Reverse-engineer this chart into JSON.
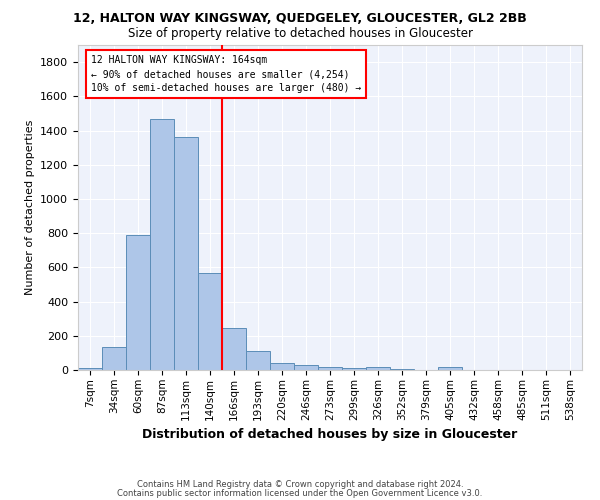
{
  "title_main": "12, HALTON WAY KINGSWAY, QUEDGELEY, GLOUCESTER, GL2 2BB",
  "title_sub": "Size of property relative to detached houses in Gloucester",
  "xlabel": "Distribution of detached houses by size in Gloucester",
  "ylabel": "Number of detached properties",
  "bar_labels": [
    "7sqm",
    "34sqm",
    "60sqm",
    "87sqm",
    "113sqm",
    "140sqm",
    "166sqm",
    "193sqm",
    "220sqm",
    "246sqm",
    "273sqm",
    "299sqm",
    "326sqm",
    "352sqm",
    "379sqm",
    "405sqm",
    "432sqm",
    "458sqm",
    "485sqm",
    "511sqm",
    "538sqm"
  ],
  "bar_heights": [
    10,
    135,
    790,
    1470,
    1360,
    570,
    245,
    110,
    40,
    27,
    18,
    14,
    16,
    8,
    0,
    20,
    0,
    0,
    0,
    0,
    0
  ],
  "bar_color": "#aec6e8",
  "bar_edge_color": "#5b8db8",
  "ylim": [
    0,
    1900
  ],
  "background_color": "#eef2fb",
  "annotation_text_line1": "12 HALTON WAY KINGSWAY: 164sqm",
  "annotation_text_line2": "← 90% of detached houses are smaller (4,254)",
  "annotation_text_line3": "10% of semi-detached houses are larger (480) →",
  "footer_line1": "Contains HM Land Registry data © Crown copyright and database right 2024.",
  "footer_line2": "Contains public sector information licensed under the Open Government Licence v3.0."
}
